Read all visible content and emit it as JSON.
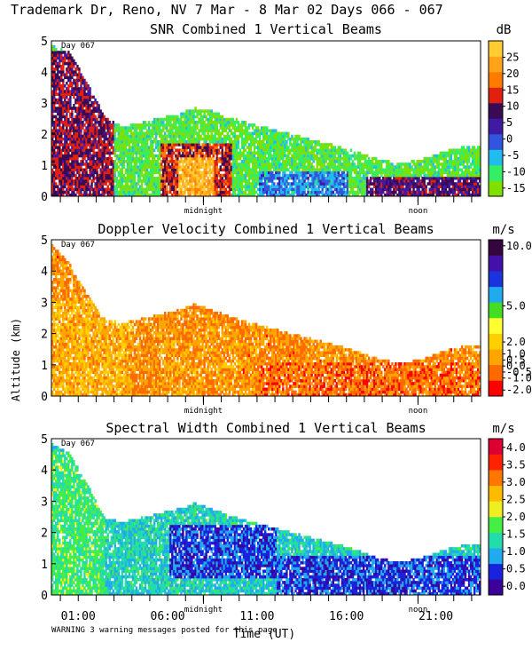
{
  "header": "Trademark Dr, Reno, NV   7 Mar -  8 Mar 02 Days 066 - 067",
  "x_axis": {
    "label": "Time (UT)",
    "tick_labels": [
      "01:00",
      "06:00",
      "11:00",
      "16:00",
      "21:00"
    ],
    "tick_values_h": [
      1,
      6,
      11,
      16,
      21
    ],
    "range_h": [
      -0.5,
      23.5
    ],
    "minor_tick_step_h": 1,
    "markers": [
      {
        "label": "midnight",
        "value_h": 8
      },
      {
        "label": "noon",
        "value_h": 20
      }
    ]
  },
  "y_axis": {
    "label": "Altitude (km)",
    "range_km": [
      0,
      5
    ],
    "tick_labels": [
      "0",
      "1",
      "2",
      "3",
      "4",
      "5"
    ],
    "ticks_km": [
      0,
      1,
      2,
      3,
      4,
      5
    ]
  },
  "footer_warning": "WARNING  3 warning messages posted for this page",
  "colors": {
    "snr": [
      "#7fe000",
      "#33ee66",
      "#22bbee",
      "#3355dd",
      "#3f1aa5",
      "#3a0a55",
      "#e02010",
      "#ff7b00",
      "#ffa41a",
      "#ffcc33"
    ],
    "vel": [
      "#ff0000",
      "#ff6a00",
      "#ffa500",
      "#ffd000",
      "#ffff33",
      "#44dd22",
      "#22aaee",
      "#1a33dd",
      "#4410aa",
      "#350540"
    ],
    "sw": [
      "#3a0099",
      "#1a22dd",
      "#22aaee",
      "#22ddaa",
      "#44ee44",
      "#eeee22",
      "#ffbb00",
      "#ff7700",
      "#ff2200",
      "#dd0033"
    ]
  },
  "chart_data": [
    {
      "type": "heatmap",
      "title": "SNR Combined 1 Vertical Beams",
      "panel_label": "Day 067",
      "xlabel": "Time (UT)",
      "ylabel": "Altitude (km)",
      "xlim": [
        -0.5,
        23.5
      ],
      "ylim": [
        0,
        5
      ],
      "colorbar": {
        "unit": "dB",
        "ticks": [
          -15,
          -10,
          -5,
          0,
          5,
          10,
          15,
          20,
          25
        ],
        "range": [
          -17.5,
          30
        ]
      },
      "palette": "snr",
      "top_km_profile": [
        [
          -0.5,
          4.8
        ],
        [
          0.5,
          4.6
        ],
        [
          1.5,
          3.6
        ],
        [
          2.5,
          2.5
        ],
        [
          3.5,
          2.2
        ],
        [
          5,
          2.4
        ],
        [
          6.5,
          2.6
        ],
        [
          7.5,
          2.8
        ],
        [
          8.5,
          2.7
        ],
        [
          10,
          2.4
        ],
        [
          12,
          2.1
        ],
        [
          14,
          1.8
        ],
        [
          16,
          1.5
        ],
        [
          17.5,
          1.2
        ],
        [
          19,
          1.0
        ],
        [
          20.5,
          1.2
        ],
        [
          22,
          1.5
        ],
        [
          23.5,
          1.6
        ]
      ],
      "features": [
        {
          "t": [
            -0.5,
            2.0
          ],
          "z": [
            0,
            3.5
          ],
          "value": 24
        },
        {
          "t": [
            -0.5,
            3.0
          ],
          "z": [
            0,
            4.6
          ],
          "value": 10
        },
        {
          "t": [
            5.5,
            9.5
          ],
          "z": [
            0,
            1.7
          ],
          "value": 13
        },
        {
          "t": [
            6.5,
            8.5
          ],
          "z": [
            0,
            1.2
          ],
          "value": 24
        },
        {
          "t": [
            11,
            16
          ],
          "z": [
            0,
            0.8
          ],
          "value": -3
        },
        {
          "t": [
            17,
            23.5
          ],
          "z": [
            0,
            0.6
          ],
          "value": 8
        }
      ]
    },
    {
      "type": "heatmap",
      "title": "Doppler Velocity Combined 1 Vertical Beams",
      "panel_label": "Day 067",
      "xlabel": "Time (UT)",
      "ylabel": "Altitude (km)",
      "xlim": [
        -0.5,
        23.5
      ],
      "ylim": [
        0,
        5
      ],
      "colorbar": {
        "unit": "m/s",
        "ticks": [
          -2.0,
          -1.0,
          -0.5,
          0.0,
          0.5,
          1.0,
          2.0,
          5.0,
          10.0
        ],
        "range": [
          -2.5,
          10.5
        ]
      },
      "palette": "vel",
      "top_km_profile": [
        [
          -0.5,
          4.8
        ],
        [
          0.5,
          4.2
        ],
        [
          1.5,
          3.2
        ],
        [
          2.5,
          2.4
        ],
        [
          3.5,
          2.3
        ],
        [
          5,
          2.5
        ],
        [
          6.5,
          2.7
        ],
        [
          7.5,
          2.9
        ],
        [
          8.5,
          2.7
        ],
        [
          10,
          2.4
        ],
        [
          12,
          2.1
        ],
        [
          14,
          1.8
        ],
        [
          16,
          1.5
        ],
        [
          17.5,
          1.2
        ],
        [
          19,
          1.0
        ],
        [
          20.5,
          1.2
        ],
        [
          22,
          1.5
        ],
        [
          23.5,
          1.6
        ]
      ],
      "features": [
        {
          "t": [
            -0.5,
            4.0
          ],
          "z": [
            0,
            3.0
          ],
          "value": 1.0
        },
        {
          "t": [
            5.5,
            10.0
          ],
          "z": [
            0,
            2.2
          ],
          "value": 0.5
        },
        {
          "t": [
            11,
            23.5
          ],
          "z": [
            0,
            1.0
          ],
          "value": -0.4
        }
      ]
    },
    {
      "type": "heatmap",
      "title": "Spectral Width Combined 1 Vertical Beams",
      "panel_label": "Day 067",
      "xlabel": "Time (UT)",
      "ylabel": "Altitude (km)",
      "xlim": [
        -0.5,
        23.5
      ],
      "ylim": [
        0,
        5
      ],
      "colorbar": {
        "unit": "m/s",
        "ticks": [
          0.0,
          0.5,
          1.0,
          1.5,
          2.0,
          2.5,
          3.0,
          3.5,
          4.0
        ],
        "range": [
          -0.25,
          4.25
        ]
      },
      "palette": "sw",
      "top_km_profile": [
        [
          -0.5,
          4.8
        ],
        [
          0.5,
          4.5
        ],
        [
          1.5,
          3.5
        ],
        [
          2.5,
          2.4
        ],
        [
          3.5,
          2.3
        ],
        [
          5,
          2.5
        ],
        [
          6.5,
          2.7
        ],
        [
          7.5,
          2.9
        ],
        [
          8.5,
          2.7
        ],
        [
          10,
          2.4
        ],
        [
          12,
          2.1
        ],
        [
          14,
          1.8
        ],
        [
          16,
          1.5
        ],
        [
          17.5,
          1.2
        ],
        [
          19,
          1.0
        ],
        [
          20.5,
          1.2
        ],
        [
          22,
          1.5
        ],
        [
          23.5,
          1.6
        ]
      ],
      "features": [
        {
          "t": [
            -0.5,
            2.5
          ],
          "z": [
            0,
            4.5
          ],
          "value": 1.6
        },
        {
          "t": [
            6.0,
            12.0
          ],
          "z": [
            0.5,
            2.2
          ],
          "value": 0.5
        },
        {
          "t": [
            12,
            23.5
          ],
          "z": [
            0,
            1.2
          ],
          "value": 0.5
        }
      ]
    }
  ]
}
